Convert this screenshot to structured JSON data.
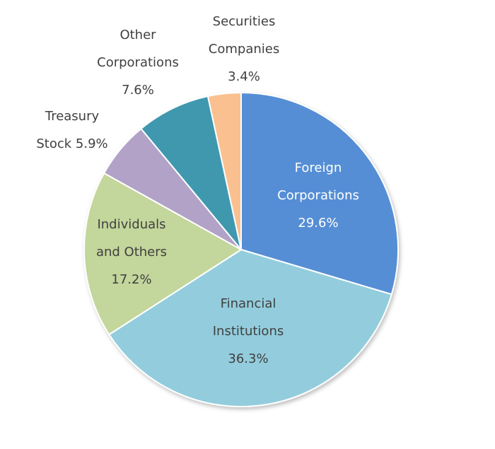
{
  "chart_data": {
    "type": "pie",
    "title": "",
    "start_angle_deg": 0,
    "direction": "clockwise",
    "slices": [
      {
        "label": "Foreign Corporations",
        "value": 29.6,
        "value_label": "29.6%",
        "color": "#558ED5",
        "label_lines": [
          "Foreign",
          "Corporations",
          "29.6%"
        ],
        "label_color": "#ffffff"
      },
      {
        "label": "Financial Institutions",
        "value": 36.3,
        "value_label": "36.3%",
        "color": "#93CDDD",
        "label_lines": [
          "Financial",
          "Institutions",
          "36.3%"
        ],
        "label_color": "#404040"
      },
      {
        "label": "Individuals and Others",
        "value": 17.2,
        "value_label": "17.2%",
        "color": "#C3D69B",
        "label_lines": [
          "Individuals",
          "and Others",
          "17.2%"
        ],
        "label_color": "#404040"
      },
      {
        "label": "Treasury Stock",
        "value": 5.9,
        "value_label": "5.9%",
        "color": "#B2A2C7",
        "label_lines": [
          "Treasury",
          "Stock 5.9%"
        ],
        "label_color": "#404040"
      },
      {
        "label": "Other Corporations",
        "value": 7.6,
        "value_label": "7.6%",
        "color": "#4198AF",
        "label_lines": [
          "Other",
          "Corporations",
          "7.6%"
        ],
        "label_color": "#404040"
      },
      {
        "label": "Securities Companies",
        "value": 3.4,
        "value_label": "3.4%",
        "color": "#FAC090",
        "label_lines": [
          "Securities",
          "Companies",
          "3.4%"
        ],
        "label_color": "#404040"
      }
    ]
  }
}
